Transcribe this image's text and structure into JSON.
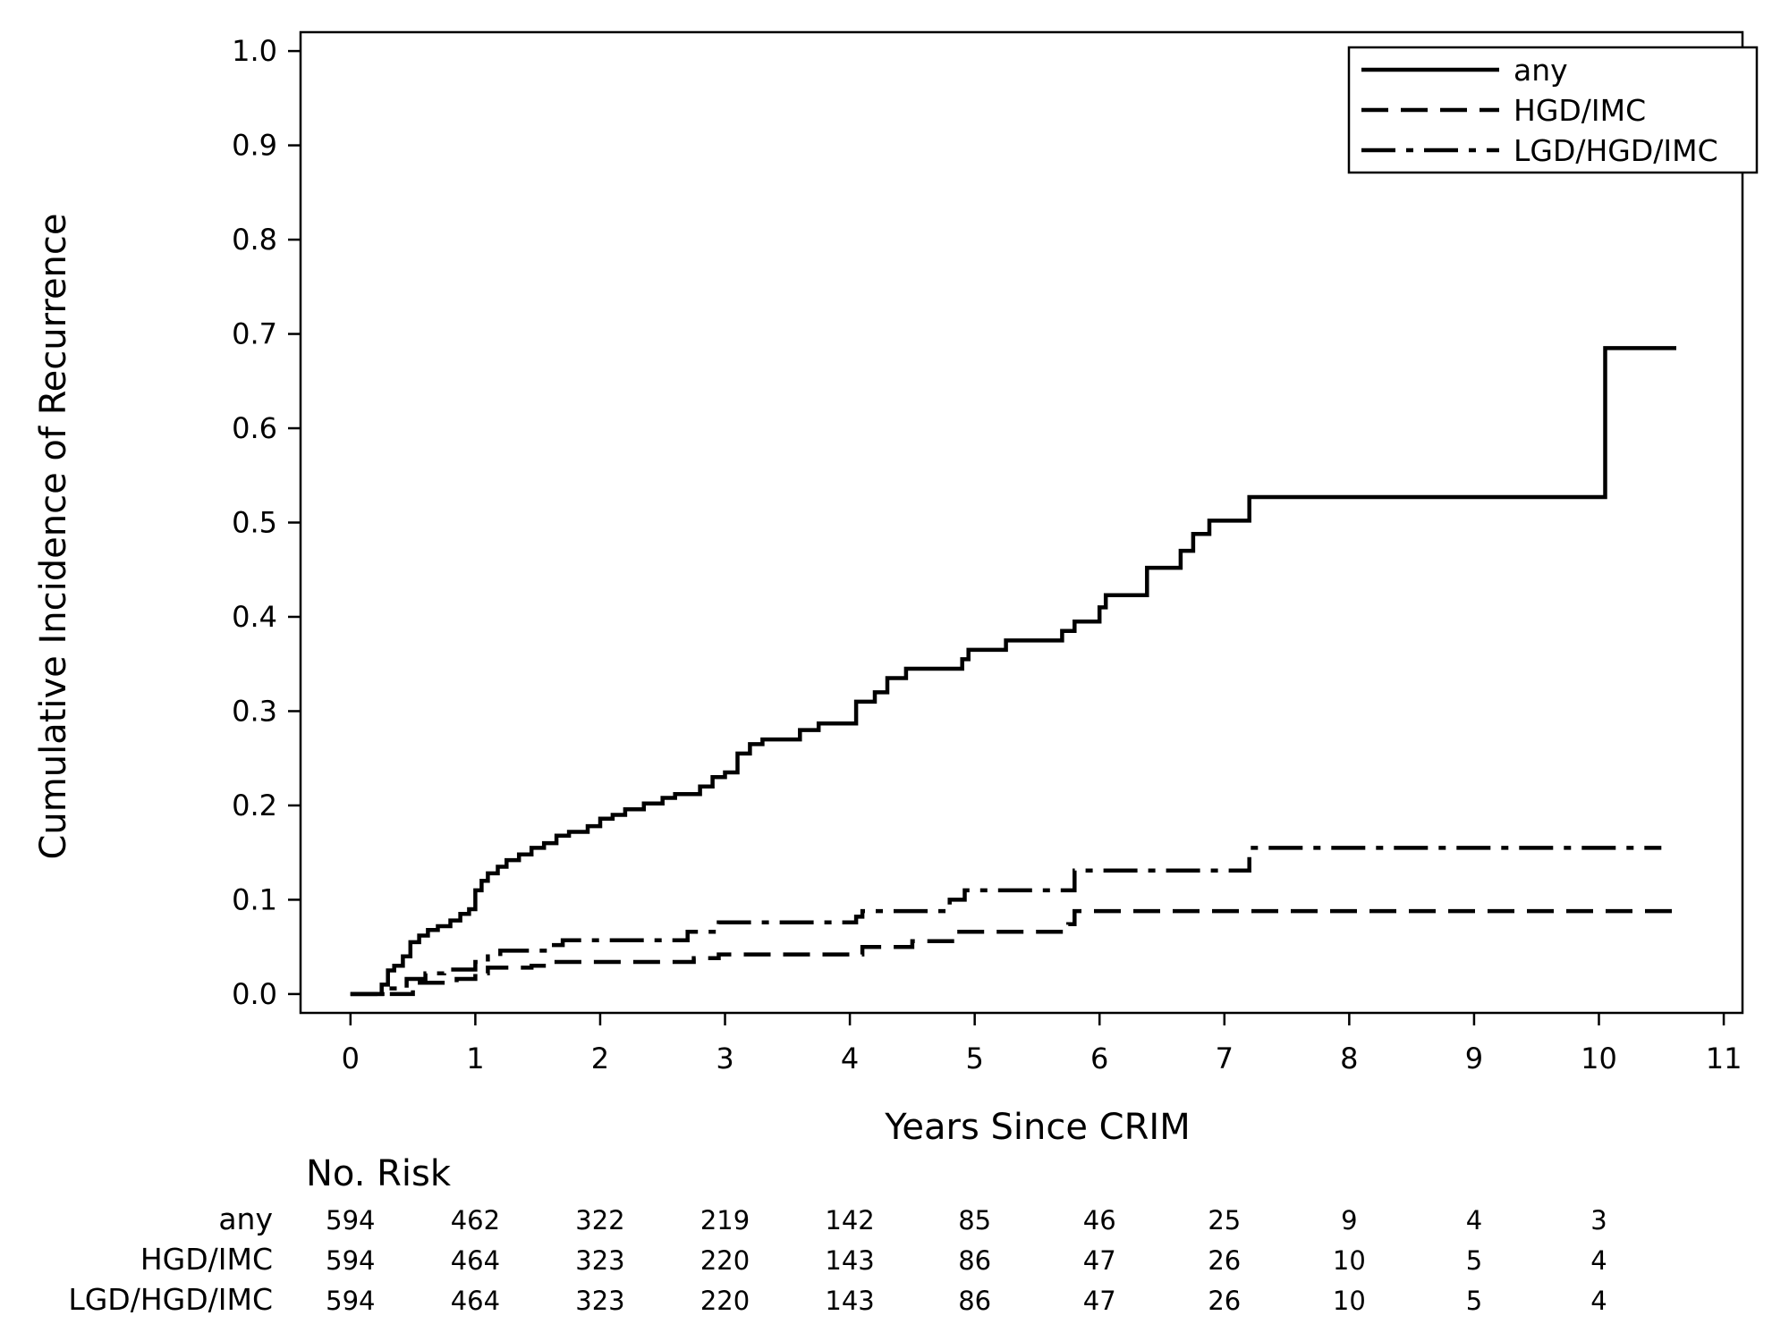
{
  "chart_data": {
    "type": "line",
    "title": "",
    "xlabel": "Years Since CRIM",
    "ylabel": "Cumulative Incidence of Recurrence",
    "xlim": [
      -0.4,
      11.15
    ],
    "ylim": [
      -0.02,
      1.02
    ],
    "x_ticks": [
      0,
      1,
      2,
      3,
      4,
      5,
      6,
      7,
      8,
      9,
      10,
      11
    ],
    "x_tick_labels": [
      "0",
      "1",
      "2",
      "3",
      "4",
      "5",
      "6",
      "7",
      "8",
      "9",
      "10",
      "11"
    ],
    "y_ticks": [
      0.0,
      0.1,
      0.2,
      0.3,
      0.4,
      0.5,
      0.6,
      0.7,
      0.8,
      0.9,
      1.0
    ],
    "y_tick_labels": [
      "0.0",
      "0.1",
      "0.2",
      "0.3",
      "0.4",
      "0.5",
      "0.6",
      "0.7",
      "0.8",
      "0.9",
      "1.0"
    ],
    "grid": false,
    "legend_position": "top-right",
    "series": [
      {
        "name": "any",
        "style": "solid",
        "step": [
          [
            0.0,
            0.0
          ],
          [
            0.2,
            0.0
          ],
          [
            0.25,
            0.01
          ],
          [
            0.3,
            0.025
          ],
          [
            0.35,
            0.03
          ],
          [
            0.42,
            0.04
          ],
          [
            0.48,
            0.055
          ],
          [
            0.55,
            0.062
          ],
          [
            0.62,
            0.068
          ],
          [
            0.7,
            0.072
          ],
          [
            0.8,
            0.078
          ],
          [
            0.88,
            0.085
          ],
          [
            0.95,
            0.09
          ],
          [
            1.0,
            0.11
          ],
          [
            1.05,
            0.12
          ],
          [
            1.1,
            0.128
          ],
          [
            1.18,
            0.135
          ],
          [
            1.25,
            0.142
          ],
          [
            1.35,
            0.148
          ],
          [
            1.45,
            0.155
          ],
          [
            1.55,
            0.16
          ],
          [
            1.65,
            0.168
          ],
          [
            1.75,
            0.172
          ],
          [
            1.9,
            0.178
          ],
          [
            2.0,
            0.186
          ],
          [
            2.1,
            0.19
          ],
          [
            2.2,
            0.196
          ],
          [
            2.35,
            0.202
          ],
          [
            2.5,
            0.208
          ],
          [
            2.6,
            0.212
          ],
          [
            2.8,
            0.22
          ],
          [
            2.9,
            0.23
          ],
          [
            3.0,
            0.235
          ],
          [
            3.1,
            0.255
          ],
          [
            3.2,
            0.265
          ],
          [
            3.3,
            0.27
          ],
          [
            3.6,
            0.28
          ],
          [
            3.75,
            0.287
          ],
          [
            4.05,
            0.31
          ],
          [
            4.2,
            0.32
          ],
          [
            4.3,
            0.335
          ],
          [
            4.45,
            0.345
          ],
          [
            4.9,
            0.355
          ],
          [
            4.95,
            0.365
          ],
          [
            5.25,
            0.375
          ],
          [
            5.7,
            0.385
          ],
          [
            5.8,
            0.395
          ],
          [
            6.0,
            0.41
          ],
          [
            6.05,
            0.423
          ],
          [
            6.38,
            0.452
          ],
          [
            6.65,
            0.47
          ],
          [
            6.75,
            0.488
          ],
          [
            6.88,
            0.502
          ],
          [
            7.2,
            0.527
          ],
          [
            10.05,
            0.685
          ],
          [
            10.62,
            0.685
          ]
        ]
      },
      {
        "name": "HGD/IMC",
        "style": "dashed",
        "step": [
          [
            0.0,
            0.0
          ],
          [
            0.5,
            0.012
          ],
          [
            0.85,
            0.016
          ],
          [
            1.0,
            0.022
          ],
          [
            1.1,
            0.028
          ],
          [
            1.45,
            0.03
          ],
          [
            1.6,
            0.034
          ],
          [
            2.75,
            0.038
          ],
          [
            2.95,
            0.042
          ],
          [
            4.1,
            0.05
          ],
          [
            4.5,
            0.056
          ],
          [
            4.85,
            0.066
          ],
          [
            5.75,
            0.074
          ],
          [
            5.8,
            0.088
          ],
          [
            10.62,
            0.088
          ]
        ]
      },
      {
        "name": "LGD/HGD/IMC",
        "style": "dash-dot",
        "step": [
          [
            0.0,
            0.0
          ],
          [
            0.3,
            0.006
          ],
          [
            0.45,
            0.016
          ],
          [
            0.6,
            0.022
          ],
          [
            0.75,
            0.026
          ],
          [
            1.0,
            0.034
          ],
          [
            1.1,
            0.04
          ],
          [
            1.2,
            0.046
          ],
          [
            1.6,
            0.052
          ],
          [
            1.7,
            0.057
          ],
          [
            2.7,
            0.066
          ],
          [
            2.95,
            0.076
          ],
          [
            4.05,
            0.082
          ],
          [
            4.1,
            0.088
          ],
          [
            4.8,
            0.1
          ],
          [
            4.92,
            0.11
          ],
          [
            5.8,
            0.131
          ],
          [
            7.2,
            0.155
          ],
          [
            10.5,
            0.155
          ]
        ]
      }
    ],
    "risk_table": {
      "title": "No. Risk",
      "times": [
        0,
        1,
        2,
        3,
        4,
        5,
        6,
        7,
        8,
        9,
        10
      ],
      "rows": [
        {
          "label": "any",
          "values": [
            "594",
            "462",
            "322",
            "219",
            "142",
            "85",
            "46",
            "25",
            "9",
            "4",
            "3"
          ]
        },
        {
          "label": "HGD/IMC",
          "values": [
            "594",
            "464",
            "323",
            "220",
            "143",
            "86",
            "47",
            "26",
            "10",
            "5",
            "4"
          ]
        },
        {
          "label": "LGD/HGD/IMC",
          "values": [
            "594",
            "464",
            "323",
            "220",
            "143",
            "86",
            "47",
            "26",
            "10",
            "5",
            "4"
          ]
        }
      ]
    }
  }
}
